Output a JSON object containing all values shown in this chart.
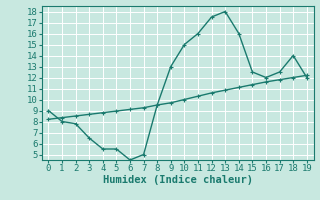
{
  "x": [
    0,
    1,
    2,
    3,
    4,
    5,
    6,
    7,
    8,
    9,
    10,
    11,
    12,
    13,
    14,
    15,
    16,
    17,
    18,
    19
  ],
  "y_main": [
    9,
    8,
    7.8,
    6.5,
    5.5,
    5.5,
    4.5,
    5,
    9.5,
    13,
    15,
    16,
    17.5,
    18,
    16,
    12.5,
    12,
    12.5,
    14,
    12
  ],
  "y_trend": [
    8.2,
    8.35,
    8.5,
    8.65,
    8.8,
    8.95,
    9.1,
    9.25,
    9.5,
    9.7,
    10.0,
    10.3,
    10.6,
    10.85,
    11.1,
    11.35,
    11.6,
    11.8,
    12.0,
    12.2
  ],
  "line_color": "#1a7a6e",
  "bg_color": "#c8e8e0",
  "grid_main_color": "#ffffff",
  "grid_sub_color": "#d8f0ea",
  "xlabel": "Humidex (Indice chaleur)",
  "ylim": [
    4.5,
    18.5
  ],
  "xlim": [
    -0.5,
    19.5
  ],
  "yticks": [
    5,
    6,
    7,
    8,
    9,
    10,
    11,
    12,
    13,
    14,
    15,
    16,
    17,
    18
  ],
  "xticks": [
    0,
    1,
    2,
    3,
    4,
    5,
    6,
    7,
    8,
    9,
    10,
    11,
    12,
    13,
    14,
    15,
    16,
    17,
    18,
    19
  ],
  "marker_size": 3.0,
  "line_width": 1.0,
  "xlabel_fontsize": 7.5,
  "tick_fontsize": 6.5
}
